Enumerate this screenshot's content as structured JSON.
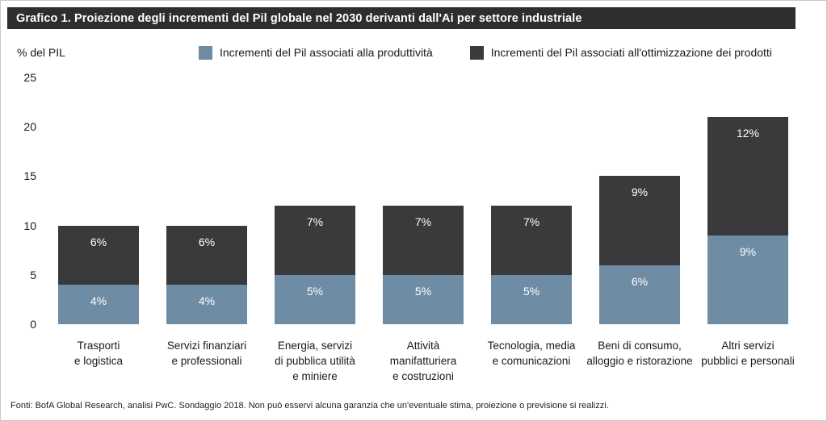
{
  "title": "Grafico 1. Proiezione degli incrementi del Pil globale nel 2030 derivanti dall'Ai per settore industriale",
  "y_axis_label": "% del PIL",
  "legend": [
    {
      "label": "Incrementi del Pil associati alla produttività",
      "color": "#6e8ca4"
    },
    {
      "label": "Incrementi del Pil associati all'ottimizzazione dei prodotti",
      "color": "#3a3a3c"
    }
  ],
  "footer": "Fonti: BofA Global Research, analisi PwC. Sondaggio 2018. Non può esservi alcuna garanzia che un'eventuale stima, proiezione o previsione si realizzi.",
  "colors": {
    "title_bar": "#2e2e30",
    "productivity": "#6e8ca4",
    "product_optimization": "#3a3a3c"
  },
  "chart_data": {
    "type": "bar",
    "stacked": true,
    "title": "Grafico 1. Proiezione degli incrementi del Pil globale nel 2030 derivanti dall'Ai per settore industriale",
    "ylabel": "% del PIL",
    "ylim": [
      0,
      25
    ],
    "yticks": [
      0,
      5,
      10,
      15,
      20,
      25
    ],
    "grid": false,
    "legend_position": "top",
    "data_label_format": "{value}%",
    "categories": [
      "Trasporti\ne logistica",
      "Servizi finanziari\ne professionali",
      "Energia, servizi\ndi pubblica utilità\ne miniere",
      "Attività\nmanifatturiera\ne costruzioni",
      "Tecnologia, media\ne comunicazioni",
      "Beni di consumo,\nalloggio e ristorazione",
      "Altri servizi\npubblici e personali"
    ],
    "series": [
      {
        "name": "Incrementi del Pil associati alla produttività",
        "color": "#6e8ca4",
        "values": [
          4,
          4,
          5,
          5,
          5,
          6,
          9
        ]
      },
      {
        "name": "Incrementi del Pil associati all'ottimizzazione dei prodotti",
        "color": "#3a3a3c",
        "values": [
          6,
          6,
          7,
          7,
          7,
          9,
          12
        ]
      }
    ]
  }
}
